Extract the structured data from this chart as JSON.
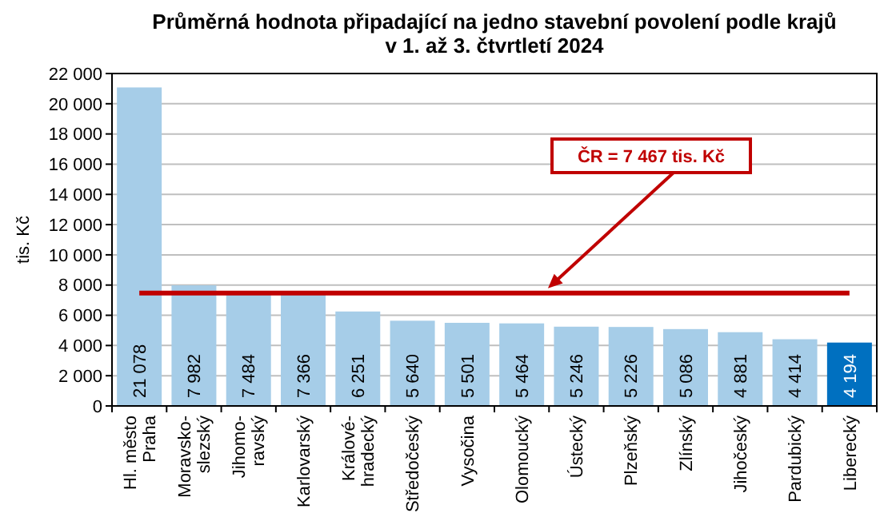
{
  "chart_data": {
    "type": "bar",
    "title": "Průměrná hodnota připadající na jedno stavební povolení podle krajů\nv 1. až 3. čtvrtletí 2024",
    "ylabel": "tis. Kč",
    "categories": [
      "Hl. město\nPraha",
      "Moravsko-\nslezský",
      "Jihomo-\nravský",
      "Karlovarský",
      "Králové-\nhradecký",
      "Středočeský",
      "Vysočina",
      "Olomoucký",
      "Ústecký",
      "Plzeňský",
      "Zlínský",
      "Jihočeský",
      "Pardubický",
      "Liberecký"
    ],
    "values": [
      21078,
      7982,
      7484,
      7366,
      6251,
      5640,
      5501,
      5464,
      5246,
      5226,
      5086,
      4881,
      4414,
      4194
    ],
    "value_labels": [
      "21 078",
      "7 982",
      "7 484",
      "7 366",
      "6 251",
      "5 640",
      "5 501",
      "5 464",
      "5 246",
      "5 226",
      "5 086",
      "4 881",
      "4 414",
      "4 194"
    ],
    "colors": [
      "#a6cde8",
      "#a6cde8",
      "#a6cde8",
      "#a6cde8",
      "#a6cde8",
      "#a6cde8",
      "#a6cde8",
      "#a6cde8",
      "#a6cde8",
      "#a6cde8",
      "#a6cde8",
      "#a6cde8",
      "#a6cde8",
      "#0070c0"
    ],
    "ylim": [
      0,
      22000
    ],
    "yticks": [
      0,
      {
        "value": 2000,
        "label": "2 000"
      },
      {
        "value": 4000,
        "label": "4 000"
      },
      {
        "value": 6000,
        "label": "6 000"
      },
      {
        "value": 8000,
        "label": "8 000"
      },
      {
        "value": 10000,
        "label": "10 000"
      },
      {
        "value": 12000,
        "label": "12 000"
      },
      {
        "value": 14000,
        "label": "14 000"
      },
      {
        "value": 16000,
        "label": "16 000"
      },
      {
        "value": 18000,
        "label": "18 000"
      },
      {
        "value": 20000,
        "label": "20 000"
      },
      {
        "value": 22000,
        "label": "22 000"
      }
    ],
    "grid": "y",
    "ref_lines": [
      {
        "axis": "y",
        "value": 7467,
        "label": "ČR = 7 467 tis. Kč",
        "color": "#c00000"
      }
    ]
  }
}
